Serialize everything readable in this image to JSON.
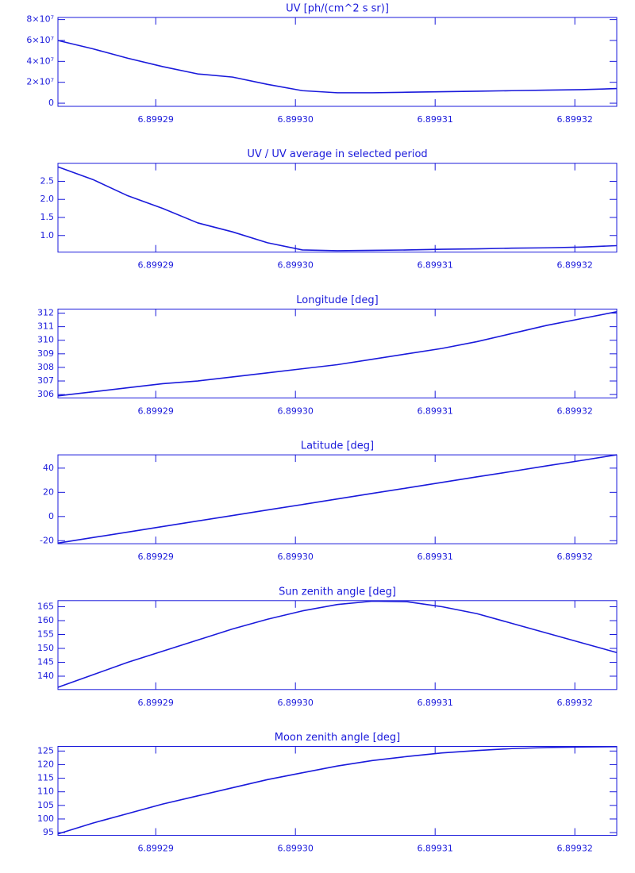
{
  "chart_data": [
    {
      "type": "line",
      "title": "UV [ph/(cm^2 s sr)]",
      "color": "#1a1adb",
      "x": [
        6.899283,
        6.8992855,
        6.899288,
        6.8992905,
        6.899293,
        6.8992955,
        6.899298,
        6.8993005,
        6.899303,
        6.8993055,
        6.899308,
        6.8993105,
        6.899313,
        6.8993155,
        6.899318,
        6.8993205,
        6.899323
      ],
      "values": [
        60000000,
        52000000,
        43000000,
        35000000,
        28000000,
        25000000,
        18000000,
        12000000,
        10000000,
        10000000,
        10500000,
        11000000,
        11500000,
        12000000,
        12500000,
        13000000,
        14000000
      ],
      "xlim": [
        6.899283,
        6.899323
      ],
      "xticks": [
        6.89929,
        {
          "value": 6.8993,
          "label": "6.89930"
        },
        6.89931,
        6.89932
      ],
      "ylim": [
        -3000000,
        82000000
      ],
      "yticks": [
        0,
        {
          "value": 20000000,
          "label": "2×10⁷"
        },
        {
          "value": 40000000,
          "label": "4×10⁷"
        },
        {
          "value": 60000000,
          "label": "6×10⁷"
        },
        {
          "value": 80000000,
          "label": "8×10⁷"
        }
      ]
    },
    {
      "type": "line",
      "title": "UV / UV average in selected period",
      "color": "#1a1adb",
      "x": [
        6.899283,
        6.8992855,
        6.899288,
        6.8992905,
        6.899293,
        6.8992955,
        6.899298,
        6.8993005,
        6.899303,
        6.8993055,
        6.899308,
        6.8993105,
        6.899313,
        6.8993155,
        6.899318,
        6.8993205,
        6.899323
      ],
      "values": [
        2.9,
        2.55,
        2.1,
        1.75,
        1.35,
        1.1,
        0.8,
        0.6,
        0.58,
        0.59,
        0.6,
        0.62,
        0.63,
        0.65,
        0.66,
        0.68,
        0.72
      ],
      "xlim": [
        6.899283,
        6.899323
      ],
      "xticks": [
        6.89929,
        {
          "value": 6.8993,
          "label": "6.89930"
        },
        6.89931,
        6.89932
      ],
      "ylim": [
        0.54,
        3.0
      ],
      "yticks": [
        {
          "value": 1,
          "label": "1.0"
        },
        1.5,
        {
          "value": 2,
          "label": "2.0"
        },
        2.5
      ]
    },
    {
      "type": "line",
      "title": "Longitude [deg]",
      "color": "#1a1adb",
      "x": [
        6.899283,
        6.8992855,
        6.899288,
        6.8992905,
        6.899293,
        6.8992955,
        6.899298,
        6.8993005,
        6.899303,
        6.8993055,
        6.899308,
        6.8993105,
        6.899313,
        6.8993155,
        6.899318,
        6.8993205,
        6.899323
      ],
      "values": [
        305.9,
        306.2,
        306.5,
        306.8,
        307.0,
        307.3,
        307.6,
        307.9,
        308.2,
        308.6,
        309.0,
        309.4,
        309.9,
        310.5,
        311.1,
        311.6,
        312.1
      ],
      "xlim": [
        6.899283,
        6.899323
      ],
      "xticks": [
        6.89929,
        {
          "value": 6.8993,
          "label": "6.89930"
        },
        6.89931,
        6.89932
      ],
      "ylim": [
        305.75,
        312.3
      ],
      "yticks": [
        306,
        307,
        308,
        309,
        310,
        311,
        312
      ]
    },
    {
      "type": "line",
      "title": "Latitude [deg]",
      "color": "#1a1adb",
      "x": [
        6.899283,
        6.8992855,
        6.899288,
        6.8992905,
        6.899293,
        6.8992955,
        6.899298,
        6.8993005,
        6.899303,
        6.8993055,
        6.899308,
        6.8993105,
        6.899313,
        6.8993155,
        6.899318,
        6.8993205,
        6.899323
      ],
      "values": [
        -22,
        -17.4,
        -12.9,
        -8.3,
        -3.7,
        0.8,
        5.4,
        9.9,
        14.5,
        19.1,
        23.6,
        28.2,
        32.8,
        37.3,
        41.9,
        46.4,
        51
      ],
      "xlim": [
        6.899283,
        6.899323
      ],
      "xticks": [
        6.89929,
        {
          "value": 6.8993,
          "label": "6.89930"
        },
        6.89931,
        6.89932
      ],
      "ylim": [
        -22.5,
        51
      ],
      "yticks": [
        -20,
        0,
        20,
        40
      ]
    },
    {
      "type": "line",
      "title": "Sun zenith angle [deg]",
      "color": "#1a1adb",
      "x": [
        6.899283,
        6.8992855,
        6.899288,
        6.8992905,
        6.899293,
        6.8992955,
        6.899298,
        6.8993005,
        6.899303,
        6.8993055,
        6.899308,
        6.8993105,
        6.899313,
        6.8993155,
        6.899318,
        6.8993205,
        6.899323
      ],
      "values": [
        136,
        140.5,
        145,
        149,
        153,
        157,
        160.5,
        163.5,
        165.8,
        167,
        166.8,
        165,
        162.5,
        159,
        155.5,
        152,
        148.5
      ],
      "xlim": [
        6.899283,
        6.899323
      ],
      "xticks": [
        6.89929,
        {
          "value": 6.8993,
          "label": "6.89930"
        },
        6.89931,
        6.89932
      ],
      "ylim": [
        135.2,
        167.2
      ],
      "yticks": [
        140,
        145,
        150,
        155,
        160,
        165
      ]
    },
    {
      "type": "line",
      "title": "Moon zenith angle [deg]",
      "color": "#1a1adb",
      "x": [
        6.899283,
        6.8992855,
        6.899288,
        6.8992905,
        6.899293,
        6.8992955,
        6.899298,
        6.8993005,
        6.899303,
        6.8993055,
        6.899308,
        6.8993105,
        6.899313,
        6.8993155,
        6.899318,
        6.8993205,
        6.899323
      ],
      "values": [
        94.5,
        98.5,
        102,
        105.5,
        108.5,
        111.5,
        114.5,
        117,
        119.5,
        121.5,
        123,
        124.3,
        125.2,
        125.9,
        126.3,
        126.5,
        126.6
      ],
      "xlim": [
        6.899283,
        6.899323
      ],
      "xticks": [
        6.89929,
        {
          "value": 6.8993,
          "label": "6.89930"
        },
        6.89931,
        6.89932
      ],
      "ylim": [
        94,
        126.7
      ],
      "yticks": [
        95,
        100,
        105,
        110,
        115,
        120,
        125
      ]
    }
  ]
}
